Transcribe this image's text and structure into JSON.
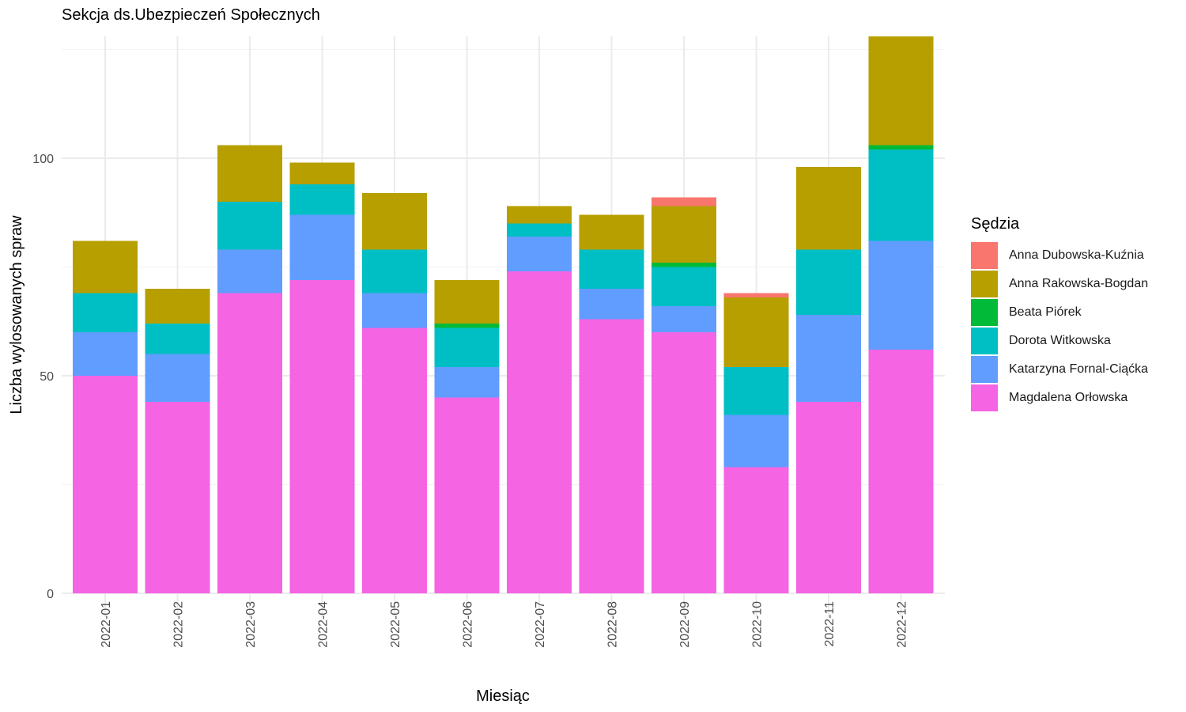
{
  "chart_data": {
    "type": "bar",
    "stacked": true,
    "title": "Sekcja ds.Ubezpieczeń Społecznych",
    "xlabel": "Miesiąc",
    "ylabel": "Liczba wylosowanych spraw",
    "ylim": [
      0,
      128
    ],
    "yticks": [
      0,
      50,
      100
    ],
    "grid": true,
    "legend_title": "Sędzia",
    "legend_position": "right",
    "categories": [
      "2022-01",
      "2022-02",
      "2022-03",
      "2022-04",
      "2022-05",
      "2022-06",
      "2022-07",
      "2022-08",
      "2022-09",
      "2022-10",
      "2022-11",
      "2022-12"
    ],
    "series": [
      {
        "name": "Anna Dubowska-Kuźnia",
        "color": "#F8766D",
        "values": [
          0,
          0,
          0,
          0,
          0,
          0,
          0,
          0,
          2,
          1,
          0,
          0
        ]
      },
      {
        "name": "Anna Rakowska-Bogdan",
        "color": "#B79F00",
        "values": [
          12,
          8,
          13,
          5,
          13,
          10,
          4,
          8,
          13,
          16,
          19,
          25
        ]
      },
      {
        "name": "Beata Piórek",
        "color": "#00BA38",
        "values": [
          0,
          0,
          0,
          0,
          0,
          1,
          0,
          0,
          1,
          0,
          0,
          1
        ]
      },
      {
        "name": "Dorota Witkowska",
        "color": "#00BFC4",
        "values": [
          9,
          7,
          11,
          7,
          10,
          9,
          3,
          9,
          9,
          11,
          15,
          21
        ]
      },
      {
        "name": "Katarzyna Fornal-Ciąćka",
        "color": "#619CFF",
        "values": [
          10,
          11,
          10,
          15,
          8,
          7,
          8,
          7,
          6,
          12,
          20,
          25
        ]
      },
      {
        "name": "Magdalena Orłowska",
        "color": "#F564E3",
        "values": [
          50,
          44,
          69,
          72,
          61,
          45,
          74,
          63,
          60,
          29,
          44,
          56
        ]
      }
    ]
  }
}
